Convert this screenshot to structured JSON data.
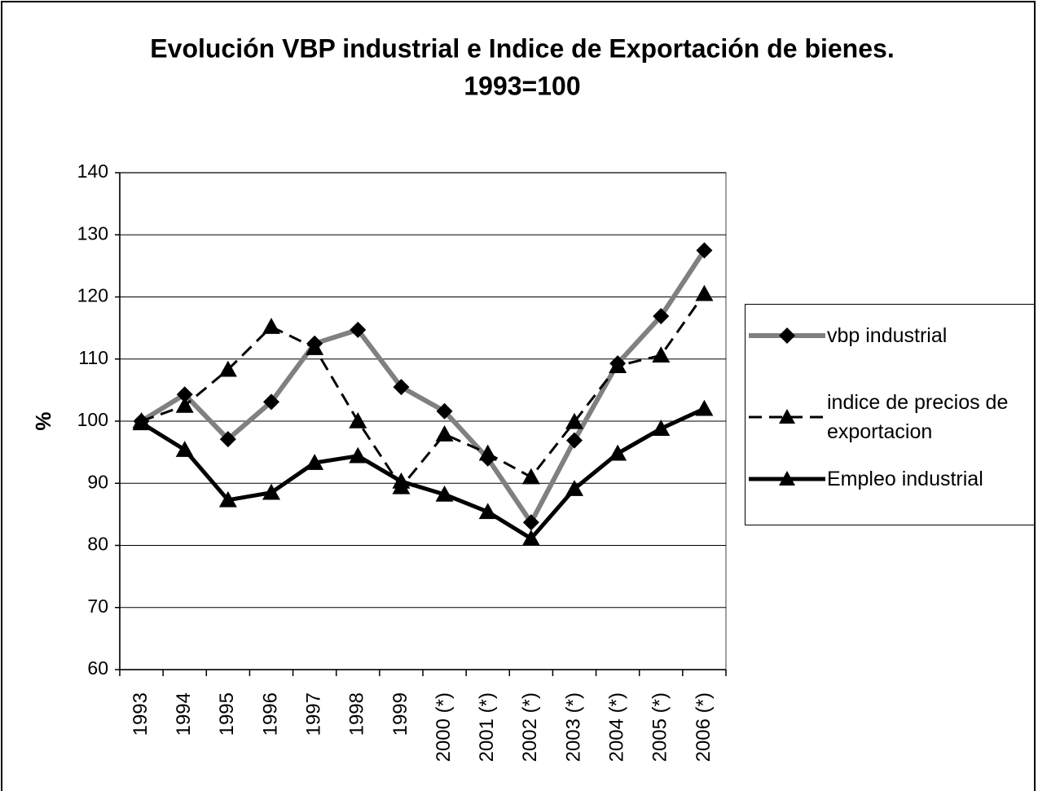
{
  "chart_data": {
    "type": "line",
    "title": "Evolución VBP industrial e Indice de Exportación de bienes.",
    "subtitle": "1993=100",
    "y_label": "%",
    "categories": [
      "1993",
      "1994",
      "1995",
      "1996",
      "1997",
      "1998",
      "1999",
      "2000 (*)",
      "2001 (*)",
      "2002 (*)",
      "2003 (*)",
      "2004 (*)",
      "2005 (*)",
      "2006 (*)"
    ],
    "series": [
      {
        "name": "vbp industrial",
        "color": "#808080",
        "marker": "diamond",
        "dashed": false,
        "values": [
          100,
          104.3,
          97.1,
          103.1,
          112.5,
          114.7,
          105.5,
          101.6,
          94.0,
          83.7,
          96.9,
          109.3,
          116.9,
          127.5
        ]
      },
      {
        "name": "indice de precios de exportacion",
        "color": "#000000",
        "marker": "triangle",
        "dashed": true,
        "values": [
          100,
          102.5,
          108.3,
          115.2,
          111.8,
          100,
          89.4,
          97.9,
          94.8,
          91.0,
          99.9,
          108.9,
          110.6,
          120.5
        ]
      },
      {
        "name": "Empleo industrial",
        "color": "#000000",
        "marker": "triangle",
        "dashed": false,
        "values": [
          99.7,
          95.4,
          87.3,
          88.5,
          93.3,
          94.4,
          90.3,
          88.2,
          85.4,
          81.1,
          89.1,
          94.8,
          98.8,
          102.0
        ]
      }
    ],
    "ylim": [
      60,
      140
    ],
    "yticks": [
      60,
      70,
      80,
      90,
      100,
      110,
      120,
      130,
      140
    ],
    "grid": true,
    "legend": "right"
  }
}
